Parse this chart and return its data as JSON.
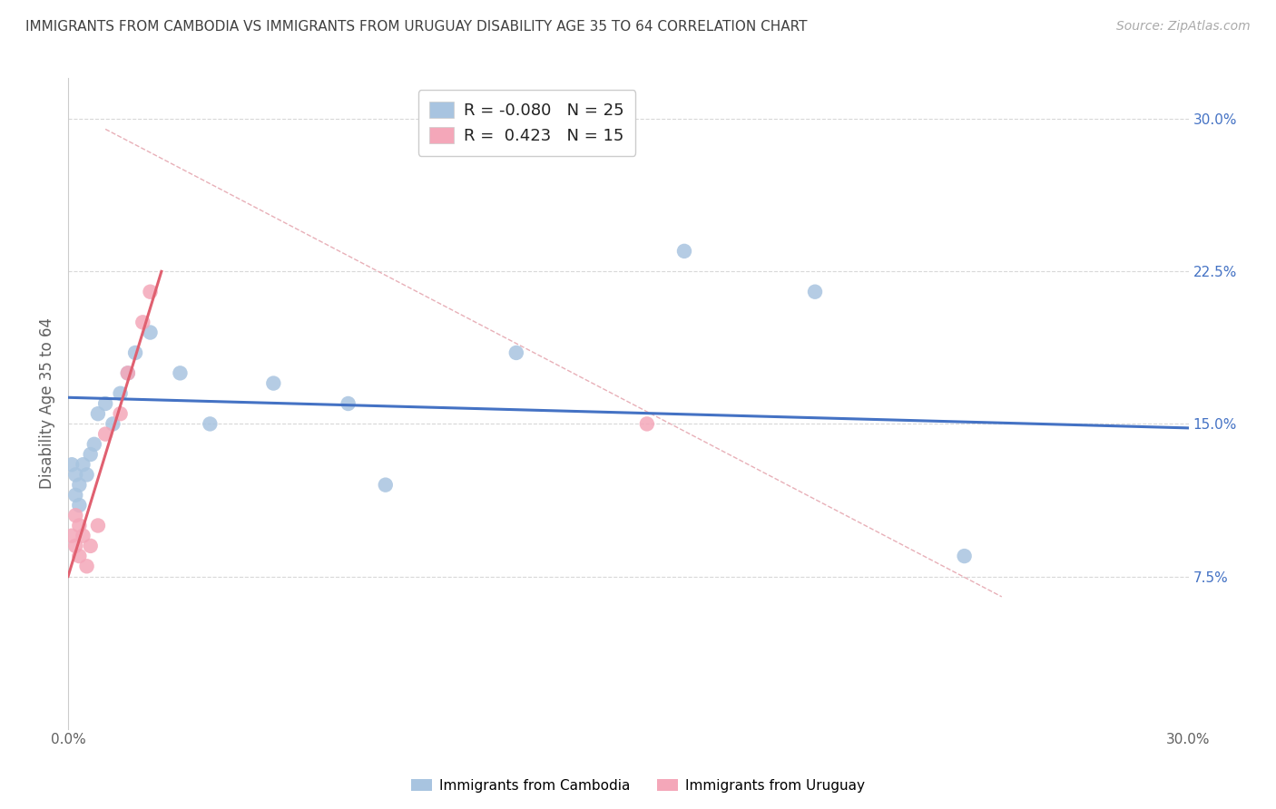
{
  "title": "IMMIGRANTS FROM CAMBODIA VS IMMIGRANTS FROM URUGUAY DISABILITY AGE 35 TO 64 CORRELATION CHART",
  "source": "Source: ZipAtlas.com",
  "ylabel": "Disability Age 35 to 64",
  "xlim": [
    0.0,
    0.3
  ],
  "ylim": [
    0.0,
    0.32
  ],
  "yticks": [
    0.075,
    0.15,
    0.225,
    0.3
  ],
  "ytick_labels": [
    "7.5%",
    "15.0%",
    "22.5%",
    "30.0%"
  ],
  "cambodia_x": [
    0.001,
    0.002,
    0.002,
    0.003,
    0.003,
    0.004,
    0.005,
    0.006,
    0.007,
    0.008,
    0.01,
    0.012,
    0.014,
    0.016,
    0.018,
    0.022,
    0.03,
    0.038,
    0.055,
    0.075,
    0.12,
    0.165,
    0.2,
    0.24,
    0.085
  ],
  "cambodia_y": [
    0.13,
    0.125,
    0.115,
    0.12,
    0.11,
    0.13,
    0.125,
    0.135,
    0.14,
    0.155,
    0.16,
    0.15,
    0.165,
    0.175,
    0.185,
    0.195,
    0.175,
    0.15,
    0.17,
    0.16,
    0.185,
    0.235,
    0.215,
    0.085,
    0.12
  ],
  "uruguay_x": [
    0.001,
    0.002,
    0.002,
    0.003,
    0.003,
    0.004,
    0.005,
    0.006,
    0.008,
    0.01,
    0.014,
    0.016,
    0.02,
    0.022,
    0.155
  ],
  "uruguay_y": [
    0.095,
    0.09,
    0.105,
    0.1,
    0.085,
    0.095,
    0.08,
    0.09,
    0.1,
    0.145,
    0.155,
    0.175,
    0.2,
    0.215,
    0.15
  ],
  "cambodia_R": -0.08,
  "cambodia_N": 25,
  "uruguay_R": 0.423,
  "uruguay_N": 15,
  "cambodia_color": "#a8c4e0",
  "uruguay_color": "#f4a7b9",
  "cambodia_line_color": "#4472c4",
  "uruguay_line_color": "#e06070",
  "diagonal_color": "#e8b0b8",
  "grid_color": "#d8d8d8",
  "title_color": "#404040",
  "source_color": "#aaaaaa",
  "axis_label_color": "#606060",
  "right_tick_color": "#4472c4",
  "background_color": "#ffffff",
  "legend_r_color": "#222222",
  "legend_n_color": "#4472c4",
  "cam_line_start_y": 0.163,
  "cam_line_end_y": 0.148,
  "uru_line_start_y": 0.075,
  "uru_line_end_y": 0.225
}
